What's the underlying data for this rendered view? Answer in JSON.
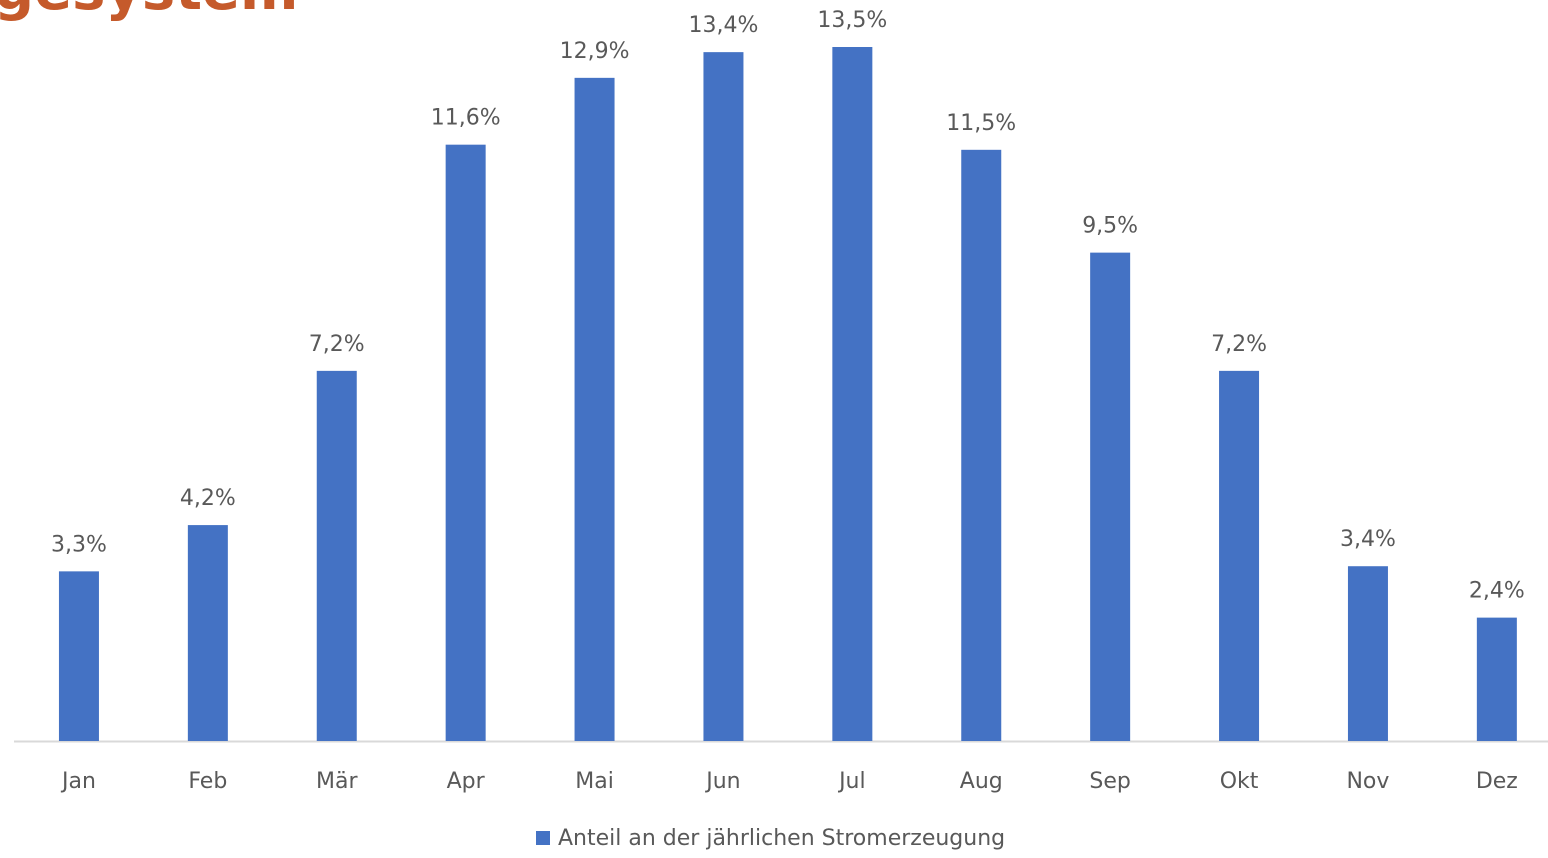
{
  "chart_data": {
    "type": "bar",
    "title": "gesystem",
    "categories": [
      "Jan",
      "Feb",
      "Mär",
      "Apr",
      "Mai",
      "Jun",
      "Jul",
      "Aug",
      "Sep",
      "Okt",
      "Nov",
      "Dez"
    ],
    "series": [
      {
        "name": "Anteil an der jährlichen Stromerzeugung",
        "color": "#4472c4",
        "values": [
          3.3,
          4.2,
          7.2,
          11.6,
          12.9,
          13.4,
          13.5,
          11.5,
          9.5,
          7.2,
          3.4,
          2.4
        ],
        "value_labels": [
          "3,3%",
          "4,2%",
          "7,2%",
          "11,6%",
          "12,9%",
          "13,4%",
          "13,5%",
          "11,5%",
          "9,5%",
          "7,2%",
          "3,4%",
          "2,4%"
        ]
      }
    ],
    "ylim": [
      0,
      13.5
    ],
    "legend": "bottom"
  }
}
